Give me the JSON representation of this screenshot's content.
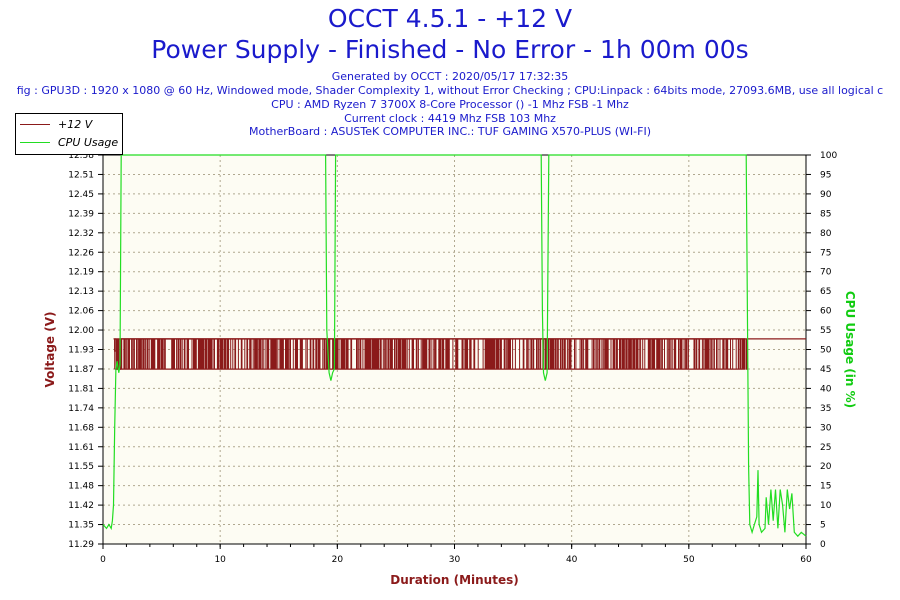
{
  "header": {
    "title": "OCCT 4.5.1 - +12 V",
    "subtitle": "Power Supply - Finished - No Error - 1h 00m 00s",
    "generated": "Generated by OCCT : 2020/05/17 17:32:35",
    "config": "fig : GPU3D : 1920 x 1080 @ 60 Hz, Windowed mode, Shader Complexity 1, without Error Checking ; CPU:Linpack : 64bits mode, 27093.6MB, use all logical c",
    "cpu": "CPU : AMD Ryzen 7 3700X 8-Core Processor () -1 Mhz FSB -1 Mhz",
    "clock": "Current clock : 4419 Mhz FSB 103 Mhz",
    "motherboard": "MotherBoard : ASUSTeK COMPUTER INC.: TUF GAMING X570-PLUS (WI-FI)"
  },
  "colors": {
    "title": "#1a1acc",
    "voltage": "#8b1a1a",
    "cpu": "#22dd22",
    "plot_bg": "#fdfcf3"
  },
  "chart_data": {
    "type": "line",
    "xlabel": "Duration (Minutes)",
    "ylabel": "Voltage (V)",
    "y2label": "CPU Usage (in %)",
    "xlim": [
      0,
      60
    ],
    "ylim": [
      11.29,
      12.58
    ],
    "y2lim": [
      0,
      100
    ],
    "grid": true,
    "legend_position": "top-left",
    "x_ticks": [
      "0",
      "10",
      "20",
      "30",
      "40",
      "50",
      "60"
    ],
    "y_ticks": [
      "12.58",
      "12.51",
      "12.45",
      "12.39",
      "12.32",
      "12.26",
      "12.19",
      "12.13",
      "12.06",
      "12.00",
      "11.93",
      "11.87",
      "11.81",
      "11.74",
      "11.68",
      "11.61",
      "11.55",
      "11.48",
      "11.42",
      "11.35",
      "11.29"
    ],
    "y2_ticks": [
      "100",
      "95",
      "90",
      "85",
      "80",
      "75",
      "70",
      "65",
      "60",
      "55",
      "50",
      "45",
      "40",
      "35",
      "30",
      "25",
      "20",
      "15",
      "10",
      "5",
      "0"
    ],
    "series": [
      {
        "name": "+12 V",
        "axis": "left",
        "values": [
          [
            0.9,
            11.97
          ],
          [
            1,
            11.97
          ],
          [
            1,
            11.93
          ],
          [
            1.2,
            11.93
          ],
          [
            1.2,
            11.87
          ],
          [
            1.5,
            11.87
          ],
          [
            1.5,
            11.97
          ],
          [
            54.9,
            11.97
          ],
          [
            54.9,
            11.87
          ],
          [
            55,
            11.87
          ],
          [
            55,
            11.97
          ],
          [
            60,
            11.97
          ]
        ],
        "band_range": [
          11.87,
          11.97
        ],
        "band_x_range": [
          1.0,
          54.8
        ]
      },
      {
        "name": "CPU Usage",
        "axis": "right",
        "values": [
          [
            0,
            5
          ],
          [
            0.3,
            4
          ],
          [
            0.5,
            5
          ],
          [
            0.7,
            4
          ],
          [
            0.8,
            6
          ],
          [
            0.9,
            10
          ],
          [
            1.0,
            30
          ],
          [
            1.1,
            45
          ],
          [
            1.2,
            47
          ],
          [
            1.35,
            44
          ],
          [
            1.45,
            46
          ],
          [
            1.55,
            100
          ],
          [
            19.0,
            100
          ],
          [
            19.1,
            55
          ],
          [
            19.3,
            44
          ],
          [
            19.45,
            42
          ],
          [
            19.6,
            44
          ],
          [
            19.75,
            45
          ],
          [
            19.85,
            100
          ],
          [
            37.4,
            100
          ],
          [
            37.5,
            60
          ],
          [
            37.6,
            44
          ],
          [
            37.75,
            42
          ],
          [
            37.9,
            44
          ],
          [
            38.05,
            100
          ],
          [
            54.9,
            100
          ],
          [
            55.0,
            60
          ],
          [
            55.1,
            20
          ],
          [
            55.2,
            5
          ],
          [
            55.4,
            3
          ],
          [
            55.6,
            5
          ],
          [
            55.8,
            7
          ],
          [
            55.9,
            19
          ],
          [
            56.0,
            5
          ],
          [
            56.2,
            3
          ],
          [
            56.5,
            4
          ],
          [
            56.6,
            12
          ],
          [
            56.8,
            5
          ],
          [
            57.0,
            14
          ],
          [
            57.2,
            6
          ],
          [
            57.4,
            14
          ],
          [
            57.6,
            4
          ],
          [
            57.8,
            14
          ],
          [
            58.0,
            10
          ],
          [
            58.2,
            3
          ],
          [
            58.4,
            14
          ],
          [
            58.6,
            9
          ],
          [
            58.8,
            13
          ],
          [
            59.0,
            3
          ],
          [
            59.3,
            2
          ],
          [
            59.6,
            3
          ],
          [
            60,
            2
          ]
        ]
      }
    ]
  }
}
